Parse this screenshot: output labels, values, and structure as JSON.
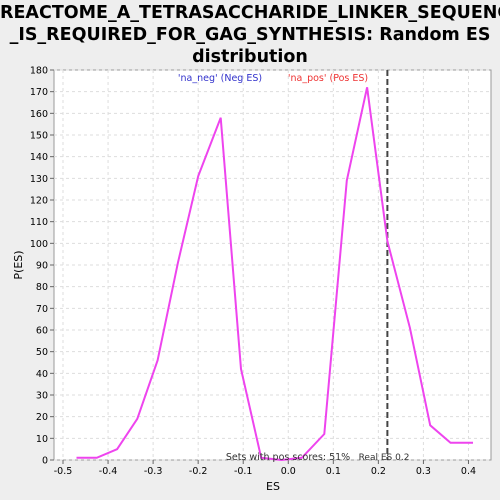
{
  "chart_data": {
    "type": "line",
    "title_lines": [
      "REACTOME_A_TETRASACCHARIDE_LINKER_SEQUENCE",
      "_IS_REQUIRED_FOR_GAG_SYNTHESIS: Random ES",
      "distribution"
    ],
    "xlabel": "ES",
    "ylabel": "P(ES)",
    "xlim": [
      -0.52,
      0.45
    ],
    "ylim": [
      0,
      180
    ],
    "xticks": [
      "-0.5",
      "-0.4",
      "-0.3",
      "-0.2",
      "-0.1",
      "0.0",
      "0.1",
      "0.2",
      "0.3",
      "0.4"
    ],
    "xtick_values": [
      -0.5,
      -0.4,
      -0.3,
      -0.2,
      -0.1,
      0.0,
      0.1,
      0.2,
      0.3,
      0.4
    ],
    "yticks": [
      0,
      10,
      20,
      30,
      40,
      50,
      60,
      70,
      80,
      90,
      100,
      110,
      120,
      130,
      140,
      150,
      160,
      170,
      180
    ],
    "grid": true,
    "series": [
      {
        "color": "#ee44ee",
        "x": [
          -0.47,
          -0.425,
          -0.38,
          -0.335,
          -0.29,
          -0.245,
          -0.2,
          -0.15,
          -0.105,
          -0.06,
          -0.015,
          0.03,
          0.08,
          0.13,
          0.175,
          0.22,
          0.27,
          0.315,
          0.36,
          0.41
        ],
        "y": [
          1,
          1,
          5,
          19,
          46,
          91,
          131,
          158,
          42,
          1,
          0,
          1,
          12,
          129,
          172,
          101,
          61,
          16,
          8,
          8
        ]
      }
    ],
    "legend": [
      {
        "label": "'na_neg' (Neg ES)",
        "color": "#3333cc"
      },
      {
        "label": "'na_pos' (Pos ES)",
        "color": "#ee3333"
      }
    ],
    "real_es": 0.22,
    "annotations": {
      "sets_with_pos": "Sets with pos scores: 51%",
      "real_es_label": "Real ES 0.2"
    }
  }
}
